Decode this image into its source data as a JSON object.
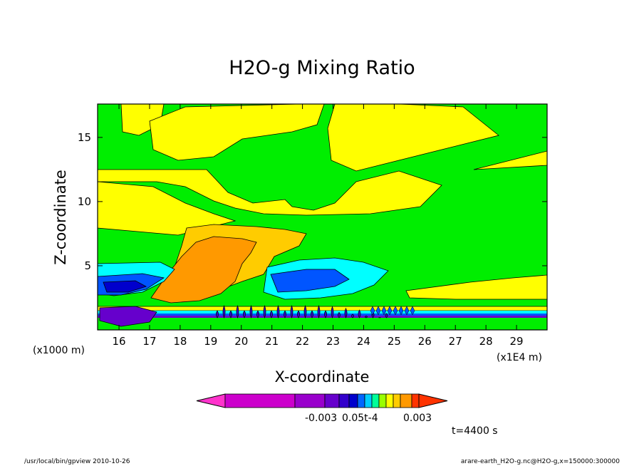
{
  "chart_data": {
    "type": "heatmap",
    "title": "H2O-g Mixing Ratio",
    "xlabel": "X-coordinate",
    "ylabel": "Z-coordinate",
    "x_unit_left": "(x1000 m)",
    "x_unit_right": "(x1E4 m)",
    "x_ticks": [
      16,
      17,
      18,
      19,
      20,
      21,
      22,
      23,
      24,
      25,
      26,
      27,
      28,
      29
    ],
    "y_ticks": [
      5,
      10,
      15
    ],
    "xlim": [
      15.3,
      30.0
    ],
    "ylim": [
      0,
      17.6
    ],
    "colorbar": {
      "labels": [
        "-0.003",
        "0.05t-4",
        "0.003"
      ],
      "colors": [
        "#ff33cc",
        "#cc00cc",
        "#9900cc",
        "#6600cc",
        "#3300cc",
        "#0000cc",
        "#0066ff",
        "#00ccff",
        "#00ff99",
        "#99ff00",
        "#ffff00",
        "#ffcc00",
        "#ff9900",
        "#ff3300"
      ]
    },
    "fill_colors": {
      "background": "#00ee00",
      "yellow": "#ffff00",
      "orange_light": "#ffcc00",
      "orange": "#ff9900",
      "cyan": "#00ffff",
      "blue": "#0055ff",
      "dark_blue": "#0000cc",
      "purple": "#6600cc"
    }
  },
  "annotations": {
    "time": "t=4400 s",
    "footer_left": "/usr/local/bin/gpview  2010-10-26",
    "footer_right": "arare-earth_H2O-g.nc@H2O-g,x=150000:300000"
  }
}
